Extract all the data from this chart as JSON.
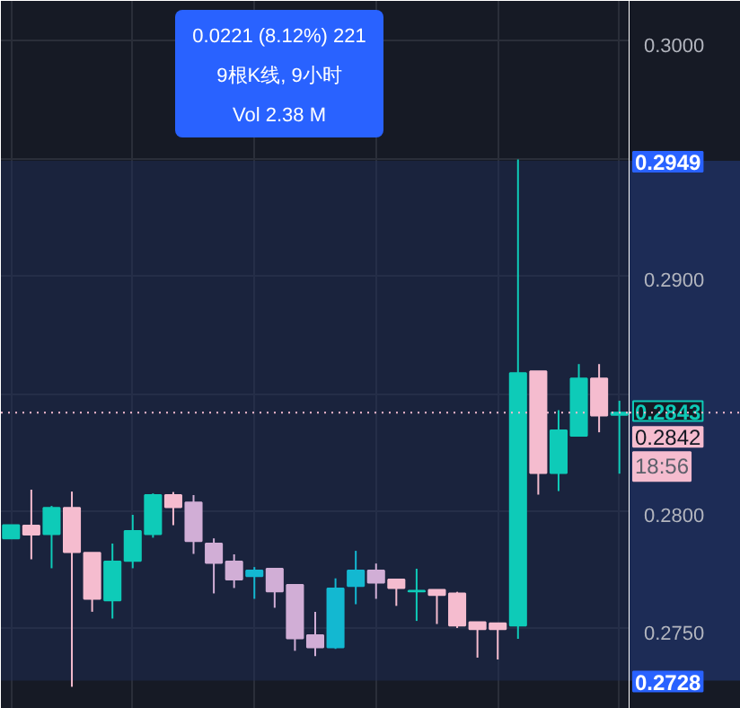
{
  "chart_data": {
    "type": "candlestick",
    "categories": [
      null,
      null,
      null,
      null,
      null,
      null,
      null,
      null,
      null,
      null,
      null,
      null,
      null,
      null,
      null,
      null,
      null,
      null,
      null,
      null,
      null,
      null,
      null,
      null,
      null,
      null,
      null,
      null,
      null,
      null,
      null
    ],
    "ohlc": [
      [
        0.27885,
        0.27941,
        0.27885,
        0.27941
      ],
      [
        0.27939,
        0.28092,
        0.27796,
        0.27901
      ],
      [
        0.27903,
        0.28023,
        0.27758,
        0.28015
      ],
      [
        0.28015,
        0.28084,
        0.27254,
        0.27827
      ],
      [
        0.27824,
        0.27824,
        0.27573,
        0.27628
      ],
      [
        0.27621,
        0.27863,
        0.27544,
        0.27786
      ],
      [
        0.27789,
        0.27985,
        0.27758,
        0.27916
      ],
      [
        0.27903,
        0.28076,
        0.27888,
        0.28069
      ],
      [
        0.28069,
        0.28082,
        0.27941,
        0.28018
      ],
      [
        0.28038,
        0.28069,
        0.27819,
        0.27873
      ],
      [
        0.27863,
        0.27885,
        0.27651,
        0.27781
      ],
      [
        0.27786,
        0.27817,
        0.27674,
        0.2771
      ],
      [
        0.27724,
        0.27763,
        0.27628,
        0.27748
      ],
      [
        0.27756,
        0.27756,
        0.2759,
        0.27659
      ],
      [
        0.27687,
        0.27687,
        0.27407,
        0.2746
      ],
      [
        0.27473,
        0.27573,
        0.27384,
        0.27422
      ],
      [
        0.27422,
        0.27715,
        0.27415,
        0.27672
      ],
      [
        0.27682,
        0.27832,
        0.27605,
        0.27748
      ],
      [
        0.27748,
        0.27778,
        0.27628,
        0.27697
      ],
      [
        0.2771,
        0.2771,
        0.27598,
        0.27674
      ],
      [
        0.27659,
        0.27756,
        0.27534,
        0.27662
      ],
      [
        0.27666,
        0.27666,
        0.27521,
        0.27644
      ],
      [
        0.27651,
        0.27658,
        0.27504,
        0.27514
      ],
      [
        0.27529,
        0.27529,
        0.27378,
        0.27499
      ],
      [
        0.27524,
        0.27524,
        0.2737,
        0.27499
      ],
      [
        0.27514,
        0.29496,
        0.27458,
        0.28588
      ],
      [
        0.28595,
        0.28595,
        0.28071,
        0.28163
      ],
      [
        0.28163,
        0.2843,
        0.28086,
        0.28344
      ],
      [
        0.28321,
        0.28626,
        0.28321,
        0.28565
      ],
      [
        0.28565,
        0.28626,
        0.28336,
        0.28407
      ],
      [
        0.2841,
        0.2847,
        0.2816,
        0.2842
      ]
    ],
    "colors": [
      "#0ecbb8",
      "#f5bccf",
      "#0ecbb8",
      "#f5bccf",
      "#f5bccf",
      "#0ecbb8",
      "#0ecbb8",
      "#0ecbb8",
      "#f5bccf",
      "#d1aed6",
      "#d1aed6",
      "#d1aed6",
      "#13b8d1",
      "#d1aed6",
      "#d1aed6",
      "#d1aed6",
      "#13b8d1",
      "#13b8d1",
      "#d1aed6",
      "#f5bccf",
      "#0ecbb8",
      "#f5bccf",
      "#f5bccf",
      "#f5bccf",
      "#f5bccf",
      "#0ecbb8",
      "#f5bccf",
      "#0ecbb8",
      "#0ecbb8",
      "#f5bccf",
      "#0ecbb8"
    ],
    "ylim": [
      0.2716,
      0.3017
    ],
    "yticks": [
      {
        "value": 0.2728,
        "label": "0.2728"
      },
      {
        "value": 0.275,
        "label": "0.2750"
      },
      {
        "value": 0.28,
        "label": "0.2800"
      },
      {
        "value": 0.2843,
        "label": "0.2843"
      },
      {
        "value": 0.285,
        "label": null
      },
      {
        "value": 0.29,
        "label": "0.2900"
      },
      {
        "value": 0.2949,
        "label": "0.2949"
      },
      {
        "value": 0.295,
        "label": null
      },
      {
        "value": 0.3,
        "label": "0.3000"
      }
    ],
    "grid": true,
    "tick_labels": "y",
    "ref_lines": [
      {
        "axis": "y",
        "value": 0.2842,
        "label": "0.2842\n18:56",
        "color": "#f5bccf",
        "line_style": "dotted"
      }
    ],
    "bands": [
      {
        "axis": "y",
        "from": 0.2728,
        "to": 0.2949,
        "color": "#1e2f5c"
      }
    ],
    "annotations": [
      "0.0221 (8.12%) 221",
      "9根K线, 9小时",
      "Vol 2.38 M"
    ]
  }
}
